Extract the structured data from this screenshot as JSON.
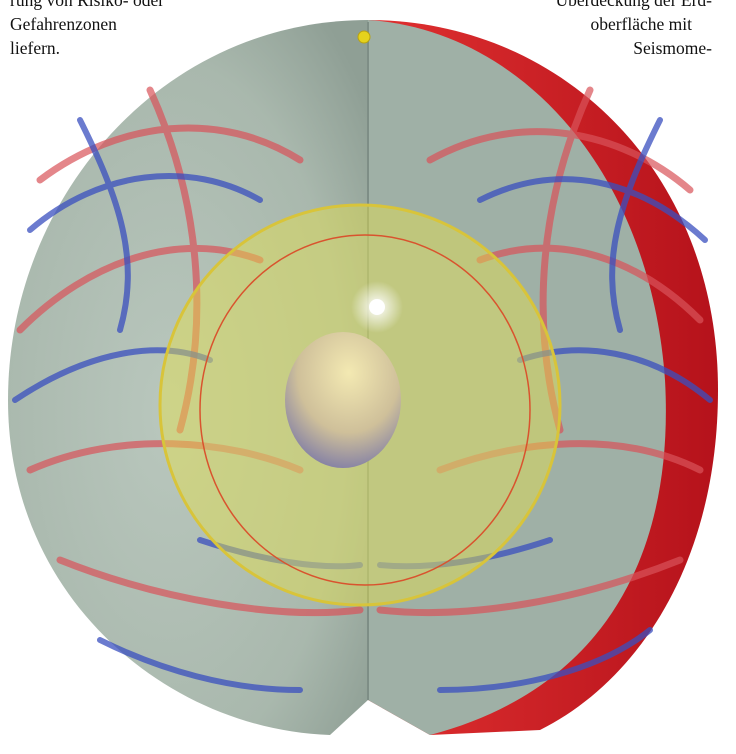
{
  "text": {
    "left_lines": [
      "rung von Risiko- oder",
      "Gefahrenzonen",
      "liefern."
    ],
    "right_lines": [
      "Überdeckung der Erd-",
      "oberfläche mit",
      "Seismome-"
    ]
  }
}
